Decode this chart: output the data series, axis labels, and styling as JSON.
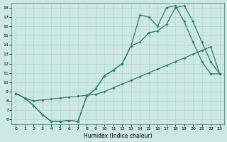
{
  "xlabel": "Humidex (Indice chaleur)",
  "bg_color": "#cde8e5",
  "line_color": "#2d7d6e",
  "grid_color": "#afd4cf",
  "xlim": [
    -0.5,
    23.5
  ],
  "ylim": [
    5.5,
    18.5
  ],
  "xticks": [
    0,
    1,
    2,
    3,
    4,
    5,
    6,
    7,
    8,
    9,
    10,
    11,
    12,
    13,
    14,
    15,
    16,
    17,
    18,
    19,
    20,
    21,
    22,
    23
  ],
  "yticks": [
    6,
    7,
    8,
    9,
    10,
    11,
    12,
    13,
    14,
    15,
    16,
    17,
    18
  ],
  "line1_x": [
    0,
    1,
    2,
    3,
    4,
    5,
    6,
    7,
    8,
    9,
    10,
    11,
    12,
    13,
    14,
    15,
    16,
    17,
    18,
    19,
    20,
    21,
    22,
    23
  ],
  "line1_y": [
    8.8,
    8.3,
    7.5,
    6.5,
    5.8,
    5.8,
    5.9,
    5.8,
    8.5,
    9.3,
    10.7,
    11.3,
    12.0,
    13.9,
    14.3,
    15.3,
    15.5,
    16.2,
    18.0,
    18.2,
    16.5,
    14.3,
    12.2,
    10.9
  ],
  "line2_x": [
    0,
    1,
    2,
    3,
    4,
    5,
    6,
    7,
    8,
    9,
    10,
    11,
    12,
    13,
    14,
    15,
    16,
    17,
    18,
    19,
    20,
    21,
    22,
    23
  ],
  "line2_y": [
    8.8,
    8.3,
    7.5,
    6.5,
    5.8,
    5.8,
    5.9,
    5.8,
    8.5,
    9.3,
    10.7,
    11.3,
    12.0,
    13.9,
    17.2,
    17.0,
    16.0,
    18.0,
    18.2,
    16.5,
    14.3,
    12.2,
    10.9,
    10.9
  ],
  "line3_x": [
    0,
    1,
    2,
    3,
    4,
    5,
    6,
    7,
    8,
    9,
    10,
    11,
    12,
    13,
    14,
    15,
    16,
    17,
    18,
    19,
    20,
    21,
    22,
    23
  ],
  "line3_y": [
    8.8,
    8.3,
    8.0,
    8.1,
    8.2,
    8.3,
    8.4,
    8.5,
    8.6,
    8.7,
    9.0,
    9.4,
    9.8,
    10.2,
    10.6,
    11.0,
    11.4,
    11.8,
    12.2,
    12.6,
    13.0,
    13.4,
    13.8,
    10.9
  ]
}
